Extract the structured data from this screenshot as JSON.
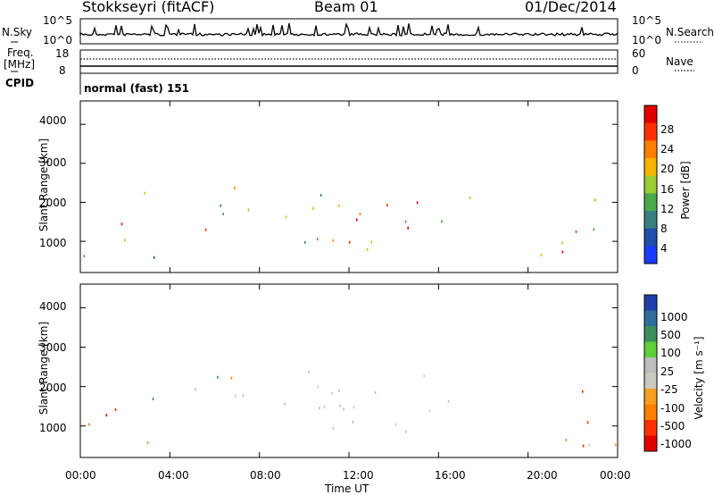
{
  "header": {
    "station": "Stokkseyri (fitACF)",
    "beam": "Beam 01",
    "date": "01/Dec/2014"
  },
  "summary_panel": {
    "nsky_label": "N.Sky",
    "nsky_ticks": [
      "10^5",
      "10^0"
    ],
    "nsearch_label": "N.Search",
    "nsearch_ticks": [
      "10^5",
      "10^0"
    ],
    "freq_label": "Freq.",
    "freq_unit": "[MHz]",
    "freq_ticks": [
      "18",
      "8"
    ],
    "nave_label": "Nave",
    "nave_ticks": [
      "60",
      "0"
    ],
    "cpid_label": "CPID",
    "cpid_text": "normal (fast) 151"
  },
  "colors": {
    "power": [
      "#1a3cff",
      "#1f4fa8",
      "#3a7f7f",
      "#4aa84a",
      "#9acd32",
      "#f5b400",
      "#ff7f00",
      "#ff3000",
      "#e00000"
    ],
    "velocity": [
      "#1f3fa8",
      "#2f6e9a",
      "#3a8f5a",
      "#5fcf3a",
      "#bdbdbd",
      "#c9c9c0",
      "#f5a020",
      "#ff7f00",
      "#ff3000",
      "#e00000"
    ]
  },
  "chart_data": [
    {
      "type": "heatmap",
      "title": "Power",
      "xlabel": "Time UT",
      "ylabel": "Slant Range [km]",
      "xlim": [
        0,
        24
      ],
      "ylim": [
        200,
        4600
      ],
      "yticks": [
        "4000",
        "3000",
        "2000",
        "1000"
      ],
      "yticks_values": [
        4000,
        3000,
        2000,
        1000
      ],
      "colorbar_label": "Power [dB]",
      "colorbar_ticks": [
        "28",
        "24",
        "20",
        "16",
        "12",
        "8",
        "4"
      ],
      "colorbar_range": [
        0,
        32
      ]
    },
    {
      "type": "heatmap",
      "title": "Velocity",
      "xlabel": "Time UT",
      "ylabel": "Slant Range [km]",
      "xlim": [
        0,
        24
      ],
      "ylim": [
        200,
        4600
      ],
      "yticks": [
        "4000",
        "3000",
        "2000",
        "1000"
      ],
      "yticks_values": [
        4000,
        3000,
        2000,
        1000
      ],
      "colorbar_label": "Velocity [m s⁻¹]",
      "colorbar_ticks": [
        "1000",
        "500",
        "100",
        "25",
        "-25",
        "-100",
        "-500",
        "-1000"
      ]
    }
  ],
  "x_axis": {
    "ticks": [
      "00:00",
      "04:00",
      "08:00",
      "12:00",
      "16:00",
      "20:00",
      "00:00"
    ],
    "ticks_values": [
      0,
      4,
      8,
      12,
      16,
      20,
      24
    ],
    "label": "Time UT"
  }
}
